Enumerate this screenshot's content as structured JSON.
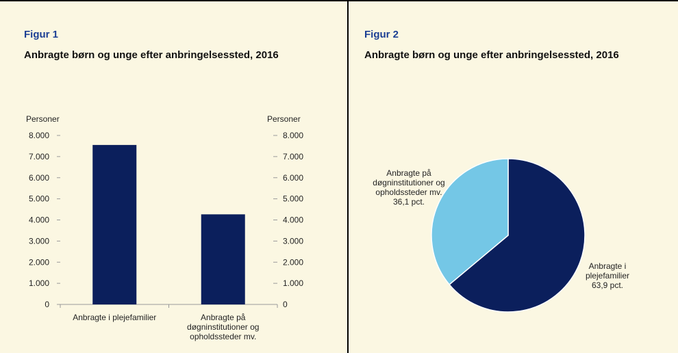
{
  "chart_data": [
    {
      "type": "bar",
      "figure": "Figur 1",
      "title": "Anbragte børn og unge efter anbringelsessted, 2016",
      "ylabel": "Personer",
      "y2label": "Personer",
      "categories": [
        "Anbragte i plejefamilier",
        "Anbragte på døgninstitutioner og opholdssteder mv."
      ],
      "values": [
        7550,
        4265
      ],
      "color": "#0b1f5c",
      "ylim": [
        0,
        8000
      ],
      "yticks": [
        0,
        {
          "value": 1000,
          "label": "1.000"
        },
        {
          "value": 2000,
          "label": "2.000"
        },
        {
          "value": 3000,
          "label": "3.000"
        },
        {
          "value": 4000,
          "label": "4.000"
        },
        {
          "value": 5000,
          "label": "5.000"
        },
        {
          "value": 6000,
          "label": "6.000"
        },
        {
          "value": 7000,
          "label": "7.000"
        },
        {
          "value": 8000,
          "label": "8.000"
        }
      ],
      "y2lim": [
        0,
        8000
      ],
      "y2ticks": [
        0,
        {
          "value": 1000,
          "label": "1.000"
        },
        {
          "value": 2000,
          "label": "2.000"
        },
        {
          "value": 3000,
          "label": "3.000"
        },
        {
          "value": 4000,
          "label": "4.000"
        },
        {
          "value": 5000,
          "label": "5.000"
        },
        {
          "value": 6000,
          "label": "6.000"
        },
        {
          "value": 7000,
          "label": "7.000"
        },
        {
          "value": 8000,
          "label": "8.000"
        }
      ],
      "grid": false
    },
    {
      "type": "pie",
      "figure": "Figur 2",
      "title": "Anbragte børn og unge efter anbringelsessted, 2016",
      "categories": [
        "Anbragte i plejefamilier",
        "Anbragte på døgninstitutioner og opholdssteder mv."
      ],
      "values": [
        63.9,
        36.1
      ],
      "value_labels": [
        "63,9 pct.",
        "36,1 pct."
      ],
      "colors": [
        "#0b1f5c",
        "#74c7e6"
      ]
    }
  ]
}
